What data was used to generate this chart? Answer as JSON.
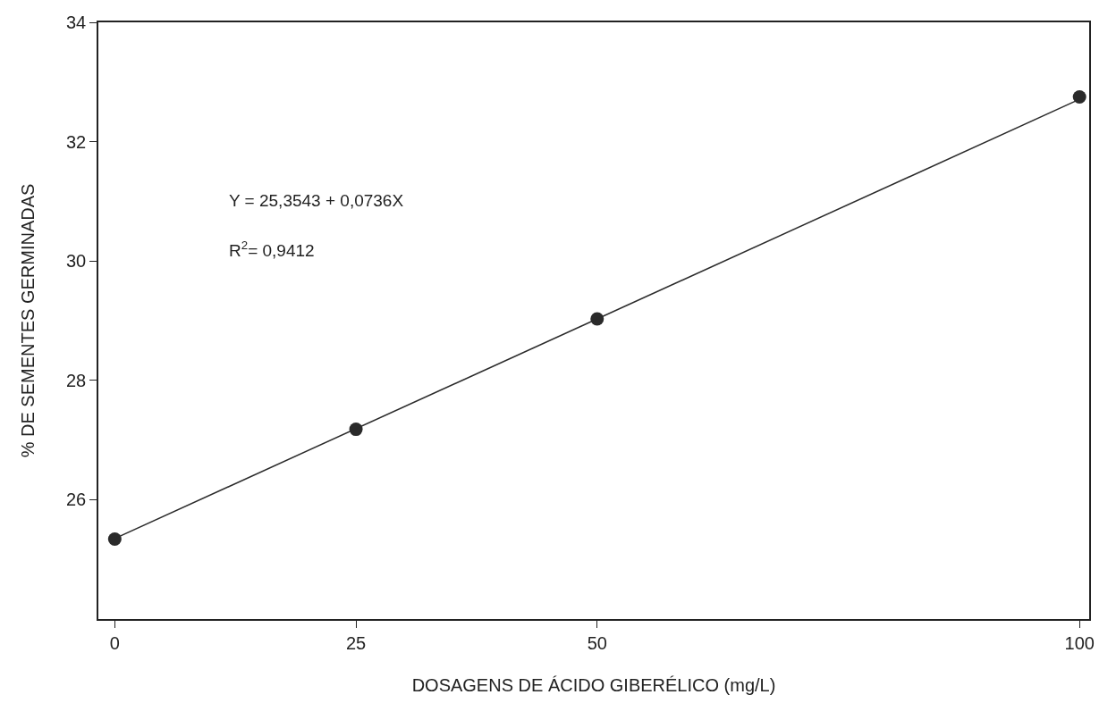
{
  "chart_data": {
    "type": "scatter",
    "xlabel": "DOSAGENS DE ÁCIDO GIBERÉLICO (mg/L)",
    "ylabel": "% DE SEMENTES GERMINADAS",
    "x": [
      0,
      25,
      50,
      100
    ],
    "series": [
      {
        "color": "#2a2a2a",
        "values": [
          25.34,
          27.18,
          29.03,
          32.75
        ],
        "marker": "circle"
      },
      {
        "type": "line",
        "color": "#2a2a2a",
        "x": [
          0,
          100
        ],
        "values": [
          25.35,
          32.71
        ],
        "marker": "none",
        "line_style": "solid"
      }
    ],
    "annotations": [
      "Y = 25,3543 + 0,0736X",
      "R$^{2}$= 0,9412"
    ],
    "xlim": [
      -1.7,
      101
    ],
    "xticks": [
      0,
      25,
      50,
      100
    ],
    "ylim": [
      24,
      34
    ],
    "yticks": [
      26,
      28,
      30,
      32,
      34
    ]
  }
}
